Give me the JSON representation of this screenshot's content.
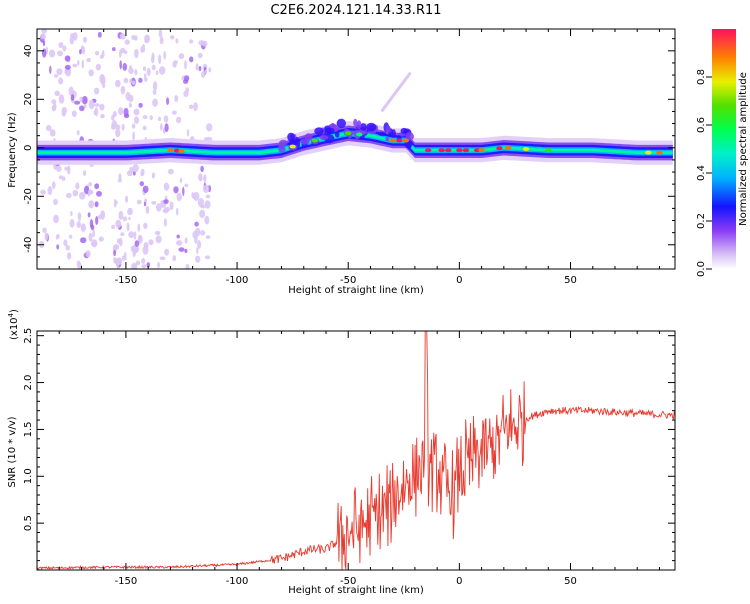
{
  "page_title": "C2E6.2024.121.14.33.R11",
  "chart_data": [
    {
      "type": "heatmap",
      "xlabel": "Height of straight line (km)",
      "ylabel": "Frequency (Hz)",
      "xlim": [
        -190,
        97
      ],
      "ylim": [
        -50,
        49
      ],
      "xticks": [
        -150,
        -100,
        -50,
        0,
        50
      ],
      "yticks": [
        -40,
        -20,
        0,
        20,
        40
      ],
      "colorbar": {
        "label": "Normalized spectral amplitude",
        "range": [
          0.0,
          1.0
        ],
        "ticks": [
          0.0,
          0.2,
          0.4,
          0.6,
          0.8
        ],
        "colormap": [
          "#ffffff",
          "#e6d2f7",
          "#8a3cf5",
          "#1010ff",
          "#00c8ff",
          "#00ff80",
          "#40e000",
          "#e8f000",
          "#ff7000",
          "#ff1060"
        ]
      },
      "ridge": {
        "x": [
          -190,
          -170,
          -150,
          -130,
          -110,
          -90,
          -80,
          -70,
          -60,
          -50,
          -40,
          -30,
          -24,
          -20,
          -10,
          0,
          10,
          20,
          40,
          60,
          80,
          97
        ],
        "y": [
          -2,
          -2,
          -2,
          -1,
          -2,
          -2,
          -1,
          2,
          4,
          6,
          5,
          3,
          3,
          -1,
          -1,
          -1,
          -1,
          0,
          -1,
          -1,
          -2,
          -2
        ],
        "amplitude": [
          0.3,
          0.35,
          0.3,
          0.6,
          0.3,
          0.35,
          0.4,
          0.5,
          0.55,
          0.6,
          0.65,
          0.8,
          0.9,
          0.5,
          0.7,
          0.8,
          0.85,
          0.7,
          0.7,
          0.65,
          0.6,
          0.55
        ]
      },
      "grid": false
    },
    {
      "type": "line",
      "xlabel": "Height of straight line (km)",
      "ylabel": "SNR (10 * v/v)",
      "y_multiplier": "(x10",
      "y_multiplier_exp": "4",
      "y_multiplier_close": ")",
      "xlim": [
        -190,
        97
      ],
      "ylim": [
        0,
        2.55
      ],
      "xticks": [
        -150,
        -100,
        -50,
        0,
        50
      ],
      "yticks": [
        0.5,
        1.0,
        1.5,
        2.0,
        2.5
      ],
      "series": [
        {
          "color": "#e83a2e",
          "x": [
            -190,
            -160,
            -130,
            -110,
            -100,
            -90,
            -80,
            -75,
            -70,
            -65,
            -60,
            -55,
            -50,
            -45,
            -40,
            -35,
            -30,
            -28,
            -25,
            -22,
            -20,
            -18,
            -16,
            -15,
            -14,
            -13,
            -12,
            -10,
            -8,
            -5,
            -2,
            0,
            3,
            6,
            10,
            14,
            18,
            22,
            26,
            30,
            40,
            60,
            80,
            97
          ],
          "y": [
            0.02,
            0.03,
            0.03,
            0.05,
            0.06,
            0.09,
            0.12,
            0.16,
            0.2,
            0.22,
            0.22,
            0.3,
            0.4,
            0.45,
            0.55,
            0.6,
            0.75,
            0.85,
            0.9,
            1.0,
            0.95,
            1.05,
            1.2,
            2.55,
            1.2,
            1.1,
            1.1,
            1.1,
            0.95,
            0.8,
            0.85,
            1.0,
            1.1,
            1.15,
            1.25,
            1.3,
            1.4,
            1.5,
            1.55,
            1.62,
            1.7,
            1.7,
            1.67,
            1.65
          ]
        }
      ],
      "grid": false
    }
  ]
}
